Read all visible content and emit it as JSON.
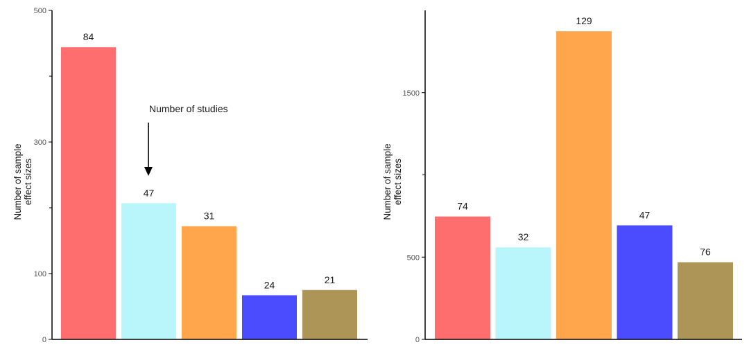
{
  "chart_data": [
    {
      "type": "bar",
      "categories": [
        "",
        "",
        "",
        "",
        ""
      ],
      "values": [
        444,
        207,
        172,
        67,
        75
      ],
      "data_labels": [
        "84",
        "47",
        "31",
        "24",
        "21"
      ],
      "colors": [
        "#ff6e6e",
        "#b8f6fb",
        "#ffa54c",
        "#4c4cff",
        "#ad9558"
      ],
      "ylabel_lines": [
        "Number of sample",
        "effect sizes"
      ],
      "ylim": [
        0,
        500
      ],
      "yticks": [
        0,
        100,
        300,
        500
      ],
      "annotation": "Number of studies",
      "grid": false
    },
    {
      "type": "bar",
      "categories": [
        "",
        "",
        "",
        "",
        ""
      ],
      "values": [
        747,
        559,
        1873,
        693,
        469
      ],
      "data_labels": [
        "74",
        "32",
        "129",
        "47",
        "76"
      ],
      "colors": [
        "#ff6e6e",
        "#b8f6fb",
        "#ffa54c",
        "#4c4cff",
        "#ad9558"
      ],
      "ylabel_lines": [
        "Number of sample",
        "effect sizes"
      ],
      "ylim": [
        0,
        2000
      ],
      "yticks": [
        0,
        500,
        1500
      ],
      "grid": false
    }
  ]
}
